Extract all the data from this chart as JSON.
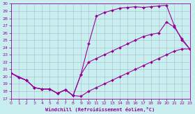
{
  "xlabel": "Windchill (Refroidissement éolien,°C)",
  "xlim": [
    0,
    23
  ],
  "ylim": [
    17,
    30
  ],
  "xticks": [
    0,
    1,
    2,
    3,
    4,
    5,
    6,
    7,
    8,
    9,
    10,
    11,
    12,
    13,
    14,
    15,
    16,
    17,
    18,
    19,
    20,
    21,
    22,
    23
  ],
  "yticks": [
    17,
    18,
    19,
    20,
    21,
    22,
    23,
    24,
    25,
    26,
    27,
    28,
    29,
    30
  ],
  "bg_color": "#c8eef0",
  "line_color": "#990099",
  "grid_color": "#aabbcc",
  "line1_x": [
    0,
    1,
    2,
    3,
    4,
    5,
    6,
    7,
    8,
    9,
    10,
    11,
    12,
    13,
    14,
    15,
    16,
    17,
    18,
    19,
    20,
    21,
    22,
    23
  ],
  "line1_y": [
    20.5,
    19.9,
    19.5,
    18.5,
    18.3,
    18.3,
    17.7,
    18.2,
    17.4,
    17.3,
    18.0,
    18.5,
    19.0,
    19.5,
    20.0,
    20.5,
    21.0,
    21.5,
    22.0,
    22.5,
    23.0,
    23.5,
    23.8,
    23.8
  ],
  "line2_x": [
    0,
    1,
    2,
    3,
    4,
    5,
    6,
    7,
    8,
    9,
    10,
    11,
    12,
    13,
    14,
    15,
    16,
    17,
    18,
    19,
    20,
    21,
    22,
    23
  ],
  "line2_y": [
    20.5,
    19.9,
    19.5,
    18.5,
    18.3,
    18.3,
    17.7,
    18.2,
    17.4,
    20.3,
    22.0,
    22.5,
    23.0,
    23.5,
    24.0,
    24.5,
    25.0,
    25.5,
    25.8,
    26.0,
    27.5,
    26.8,
    25.2,
    23.8
  ],
  "line3_x": [
    0,
    2,
    3,
    4,
    5,
    6,
    7,
    8,
    9,
    10,
    11,
    12,
    13,
    14,
    15,
    16,
    17,
    18,
    19,
    20,
    21,
    22,
    23
  ],
  "line3_y": [
    20.5,
    19.5,
    18.5,
    18.3,
    18.3,
    17.7,
    18.2,
    17.4,
    20.3,
    24.5,
    28.3,
    28.8,
    29.1,
    29.4,
    29.5,
    29.6,
    29.5,
    29.6,
    29.7,
    29.8,
    27.0,
    25.0,
    23.8
  ]
}
